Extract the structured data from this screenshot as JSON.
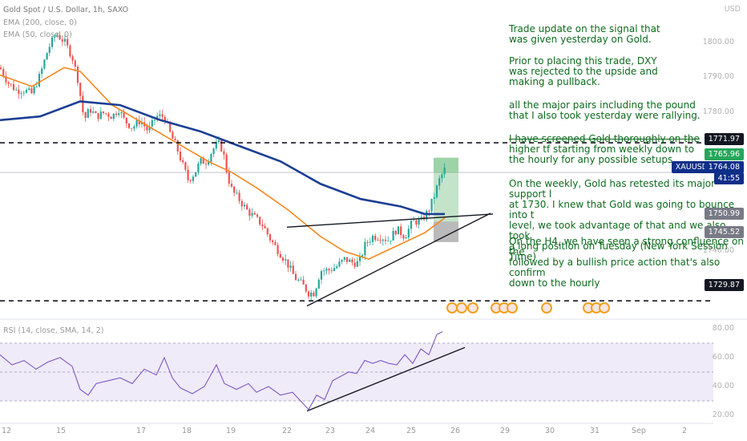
{
  "header": {
    "symbol_line": "Gold Spot / U.S. Dollar, 1h, SAXO",
    "ema200_line": "EMA (200, close, 0)",
    "ema50_line": "EMA (50, close, 0)",
    "currency": "USD"
  },
  "annotations": {
    "p1": "Trade update on the signal that\nwas given yesterday on Gold.",
    "p2": "Prior to placing this trade, DXY\nwas rejected to the upside and\nmaking a pullback.",
    "p3": "all the major pairs including the pound\nthat I also took yesterday were rallying.",
    "p4_strike": "I have screened Gold thoroughly on the",
    "p4_rest": "higher tf starting from weekly down to\nthe hourly for any possible setups.",
    "p5": "On the weekly, Gold has retested its major support l\nat 1730. I knew that Gold was going to bounce into t\nlevel, we took advantage of that and we also took\na long position on Tuesday (New York Session Time)",
    "p6": "On the H4, we have seen a strong confluence on the\nfollowed by a bullish price action that's also confirm\ndown to the hourly"
  },
  "price_axis": {
    "labels": [
      "1800.00",
      "1790.00",
      "1780.00",
      "1740.00"
    ],
    "tags": {
      "resistance": "1771.97",
      "target": "1765.96",
      "ticker": "XAUUSD",
      "last_price": "1764.08",
      "countdown": "41:55",
      "entry": "1750.99",
      "stop": "1745.52",
      "support": "1729.87"
    }
  },
  "rsi": {
    "label": "RSI (14, close, SMA, 14, 2)",
    "levels": [
      "80.00",
      "60.00",
      "40.00",
      "20.00"
    ]
  },
  "x_axis": {
    "labels": [
      "12",
      "15",
      "17",
      "18",
      "19",
      "22",
      "23",
      "24",
      "25",
      "26",
      "29",
      "30",
      "31",
      "Sep",
      "2"
    ]
  },
  "colors": {
    "ema200": "#1c3f94",
    "ema50": "#f5871f",
    "candle_up": "#26a69a",
    "candle_down": "#ef5350",
    "annotation_text": "#0e6b1e",
    "target_zone": "#7cc48a",
    "stop_zone": "#8c8c8c",
    "rsi_band": "#7e57c2",
    "rsi_line": "#7e57c2"
  },
  "chart_data": {
    "type": "candlestick",
    "title": "Gold Spot / U.S. Dollar, 1h, SAXO",
    "ylim": [
      1725,
      1810
    ],
    "close_path": [
      [
        0,
        1792
      ],
      [
        10,
        1788
      ],
      [
        20,
        1786
      ],
      [
        30,
        1786
      ],
      [
        40,
        1785
      ],
      [
        50,
        1790
      ],
      [
        60,
        1797
      ],
      [
        70,
        1801
      ],
      [
        80,
        1799
      ],
      [
        90,
        1795
      ],
      [
        97,
        1789
      ],
      [
        105,
        1778
      ],
      [
        112,
        1781
      ],
      [
        120,
        1779
      ],
      [
        130,
        1780
      ],
      [
        140,
        1779
      ],
      [
        148,
        1781
      ],
      [
        155,
        1778
      ],
      [
        165,
        1776
      ],
      [
        175,
        1778
      ],
      [
        185,
        1775
      ],
      [
        195,
        1779
      ],
      [
        205,
        1779
      ],
      [
        213,
        1774
      ],
      [
        220,
        1771
      ],
      [
        228,
        1766
      ],
      [
        235,
        1762
      ],
      [
        243,
        1764
      ],
      [
        250,
        1767
      ],
      [
        258,
        1767
      ],
      [
        265,
        1770
      ],
      [
        272,
        1772
      ],
      [
        278,
        1770
      ],
      [
        284,
        1763
      ],
      [
        290,
        1759
      ],
      [
        298,
        1757
      ],
      [
        308,
        1754
      ],
      [
        318,
        1752
      ],
      [
        328,
        1750
      ],
      [
        338,
        1746
      ],
      [
        348,
        1743
      ],
      [
        358,
        1740
      ],
      [
        368,
        1736
      ],
      [
        378,
        1734
      ],
      [
        385,
        1732
      ],
      [
        392,
        1732
      ],
      [
        400,
        1738
      ],
      [
        410,
        1738
      ],
      [
        420,
        1739
      ],
      [
        430,
        1741
      ],
      [
        440,
        1740
      ],
      [
        448,
        1740
      ],
      [
        456,
        1745
      ],
      [
        465,
        1747
      ],
      [
        475,
        1747
      ],
      [
        485,
        1746
      ],
      [
        495,
        1749
      ],
      [
        505,
        1747
      ],
      [
        515,
        1751
      ],
      [
        525,
        1751
      ],
      [
        535,
        1754
      ],
      [
        542,
        1758
      ],
      [
        548,
        1762
      ],
      [
        555,
        1765
      ]
    ],
    "ema50_path": [
      [
        0,
        1790
      ],
      [
        40,
        1787
      ],
      [
        80,
        1792
      ],
      [
        100,
        1791
      ],
      [
        140,
        1782
      ],
      [
        180,
        1777
      ],
      [
        220,
        1772
      ],
      [
        260,
        1767
      ],
      [
        290,
        1764
      ],
      [
        320,
        1760
      ],
      [
        360,
        1754
      ],
      [
        400,
        1747
      ],
      [
        430,
        1743
      ],
      [
        460,
        1741
      ],
      [
        500,
        1745
      ],
      [
        530,
        1748
      ],
      [
        555,
        1752
      ]
    ],
    "ema200_path": [
      [
        0,
        1778
      ],
      [
        50,
        1779
      ],
      [
        100,
        1783
      ],
      [
        150,
        1782
      ],
      [
        200,
        1778
      ],
      [
        250,
        1775
      ],
      [
        300,
        1771
      ],
      [
        350,
        1767
      ],
      [
        400,
        1761
      ],
      [
        450,
        1757
      ],
      [
        500,
        1755
      ],
      [
        530,
        1753
      ],
      [
        555,
        1753
      ]
    ],
    "trendlines": {
      "resistance_1771_97": [
        [
          0,
          1771.97
        ],
        [
          932,
          1771.97
        ]
      ],
      "support_1729_87": [
        [
          0,
          1729.87
        ],
        [
          932,
          1729.87
        ]
      ],
      "triangle_upper": [
        [
          358,
          1749.5
        ],
        [
          615,
          1753.0
        ]
      ],
      "triangle_lower": [
        [
          383,
          1728.5
        ],
        [
          612,
          1753.2
        ]
      ]
    },
    "target_zone": [
      1764.0,
      1768.0
    ],
    "stop_zone": [
      1745.52,
      1750.99
    ],
    "last_price": 1764.08,
    "rsi_values": [
      [
        0,
        62
      ],
      [
        15,
        55
      ],
      [
        30,
        58
      ],
      [
        45,
        52
      ],
      [
        60,
        57
      ],
      [
        75,
        60
      ],
      [
        90,
        54
      ],
      [
        100,
        38
      ],
      [
        110,
        34
      ],
      [
        120,
        42
      ],
      [
        135,
        44
      ],
      [
        150,
        46
      ],
      [
        165,
        42
      ],
      [
        180,
        52
      ],
      [
        195,
        48
      ],
      [
        205,
        60
      ],
      [
        215,
        46
      ],
      [
        225,
        39
      ],
      [
        240,
        35
      ],
      [
        255,
        40
      ],
      [
        270,
        55
      ],
      [
        280,
        42
      ],
      [
        295,
        38
      ],
      [
        310,
        42
      ],
      [
        320,
        36
      ],
      [
        335,
        40
      ],
      [
        350,
        34
      ],
      [
        365,
        36
      ],
      [
        375,
        30
      ],
      [
        385,
        24
      ],
      [
        395,
        34
      ],
      [
        405,
        31
      ],
      [
        415,
        44
      ],
      [
        425,
        47
      ],
      [
        435,
        50
      ],
      [
        445,
        49
      ],
      [
        455,
        58
      ],
      [
        465,
        56
      ],
      [
        475,
        58
      ],
      [
        485,
        56
      ],
      [
        495,
        55
      ],
      [
        505,
        62
      ],
      [
        515,
        56
      ],
      [
        525,
        66
      ],
      [
        535,
        62
      ],
      [
        545,
        76
      ],
      [
        552,
        78
      ]
    ],
    "rsi_trendline": [
      [
        383,
        23
      ],
      [
        580,
        67
      ]
    ]
  }
}
